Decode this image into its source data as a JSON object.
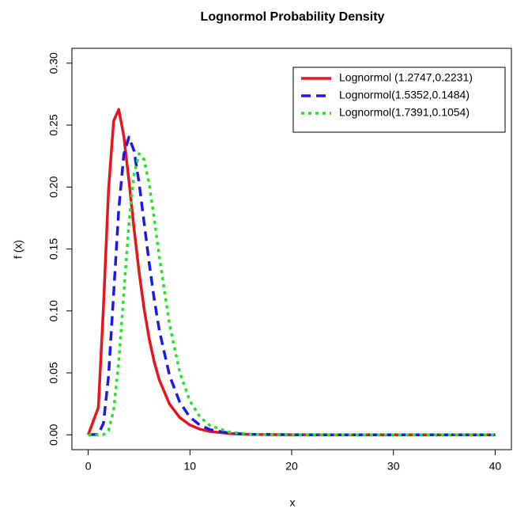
{
  "chart_data": {
    "type": "line",
    "title": "Lognormol Probability Density",
    "x_label": "x",
    "y_label": "f (x)",
    "x": [
      0,
      1,
      1.5,
      2,
      2.5,
      3,
      3.5,
      4,
      4.5,
      5,
      5.5,
      6,
      6.5,
      7,
      8,
      9,
      10,
      11,
      12,
      14,
      16,
      20,
      25,
      30,
      35,
      40
    ],
    "series": [
      {
        "name": "Lognormol (1.2747,0.2231)",
        "color": "#e8141e",
        "linestyle": "solid",
        "values": [
          0,
          0.0221,
          0.1036,
          0.1979,
          0.2533,
          0.2627,
          0.2411,
          0.2054,
          0.1668,
          0.1314,
          0.1015,
          0.0773,
          0.0585,
          0.044,
          0.0247,
          0.0139,
          0.0079,
          0.0045,
          0.0026,
          0.0009,
          0.0003,
          0.0001,
          0,
          0,
          0,
          0
        ]
      },
      {
        "name": "Lognormol(1.5352,0.1484)",
        "color": "#1a1aee",
        "linestyle": "dashed",
        "values": [
          0,
          0.0004,
          0.0094,
          0.0475,
          0.114,
          0.1816,
          0.2262,
          0.2403,
          0.2294,
          0.2033,
          0.1709,
          0.1383,
          0.1088,
          0.0838,
          0.0477,
          0.0263,
          0.0142,
          0.0077,
          0.0041,
          0.0012,
          0.0004,
          0,
          0,
          0,
          0,
          0
        ]
      },
      {
        "name": "Lognormol(1.7391,0.1054)",
        "color": "#22e622",
        "linestyle": "dotted",
        "values": [
          0,
          0,
          0.0002,
          0.0034,
          0.0198,
          0.0585,
          0.1143,
          0.1702,
          0.2101,
          0.2269,
          0.2221,
          0.2021,
          0.1739,
          0.1433,
          0.0887,
          0.0504,
          0.0272,
          0.0143,
          0.0073,
          0.0019,
          0.0005,
          0,
          0,
          0,
          0,
          0
        ]
      }
    ],
    "xlim": [
      -1.6,
      41.6
    ],
    "ylim": [
      -0.012,
      0.312
    ],
    "xticks": [
      0,
      10,
      20,
      30,
      40
    ],
    "yticks": [
      {
        "value": 0,
        "label": "0.00"
      },
      {
        "value": 0.05,
        "label": "0.05"
      },
      {
        "value": 0.1,
        "label": "0.10"
      },
      {
        "value": 0.15,
        "label": "0.15"
      },
      {
        "value": 0.2,
        "label": "0.20"
      },
      {
        "value": 0.25,
        "label": "0.25"
      },
      {
        "value": 0.3,
        "label": "0.30"
      }
    ],
    "grid": false,
    "legend": "top-right"
  }
}
